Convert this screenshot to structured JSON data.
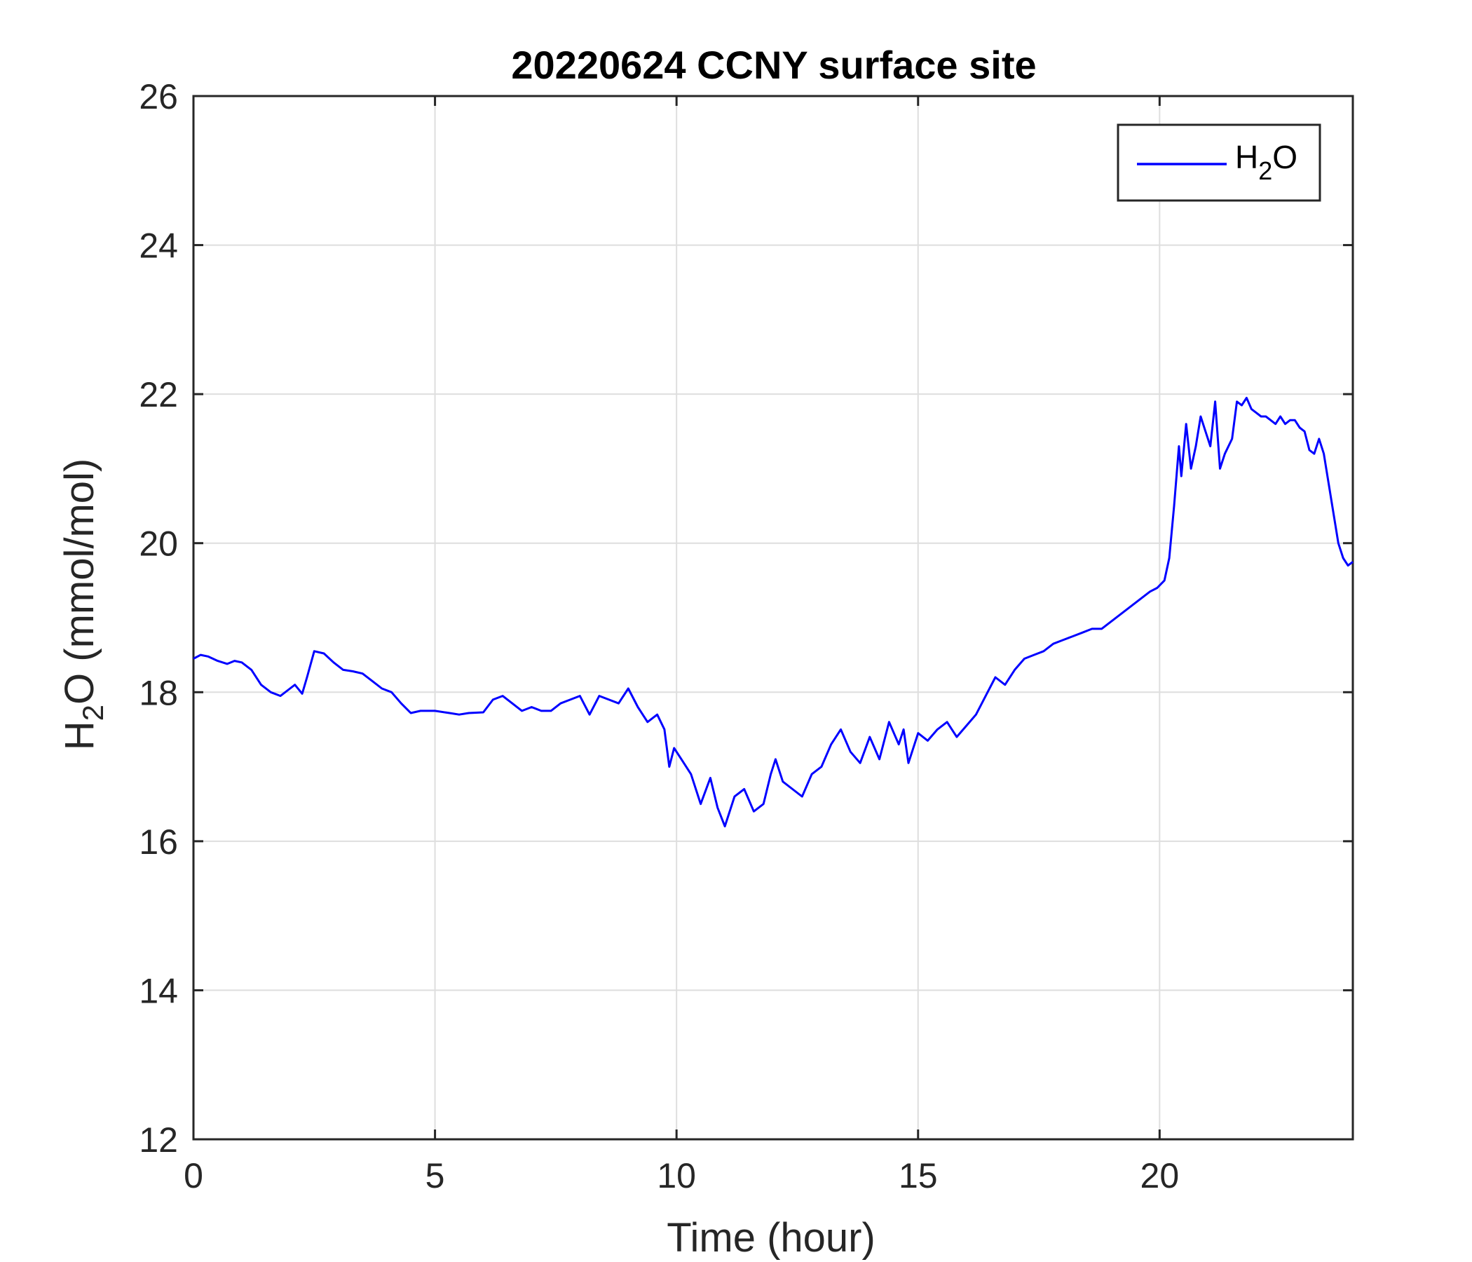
{
  "chart_data": {
    "type": "line",
    "title": "20220624 CCNY surface site",
    "xlabel": "Time (hour)",
    "ylabel": {
      "main": "H",
      "sub": "2",
      "rest": "O (mmol/mol)"
    },
    "xlim": [
      0,
      24
    ],
    "ylim": [
      12,
      26
    ],
    "xticks": [
      0,
      5,
      10,
      15,
      20
    ],
    "yticks": [
      12,
      14,
      16,
      18,
      20,
      22,
      24,
      26
    ],
    "grid": true,
    "legend_position": "top-right",
    "series": [
      {
        "name": "H2O",
        "legend_label": {
          "main": "H",
          "sub": "2",
          "rest": "O"
        },
        "color": "#0000ff",
        "x": [
          0,
          0.15,
          0.3,
          0.5,
          0.7,
          0.85,
          1.0,
          1.2,
          1.4,
          1.6,
          1.8,
          2.0,
          2.1,
          2.25,
          2.35,
          2.5,
          2.7,
          2.9,
          3.1,
          3.3,
          3.5,
          3.7,
          3.9,
          4.1,
          4.3,
          4.5,
          4.7,
          5.0,
          5.3,
          5.5,
          5.7,
          6.0,
          6.2,
          6.4,
          6.6,
          6.8,
          7.0,
          7.2,
          7.4,
          7.6,
          7.8,
          8.0,
          8.2,
          8.4,
          8.6,
          8.8,
          9.0,
          9.2,
          9.4,
          9.6,
          9.75,
          9.85,
          9.95,
          10.1,
          10.3,
          10.5,
          10.7,
          10.85,
          11.0,
          11.2,
          11.4,
          11.6,
          11.8,
          11.95,
          12.05,
          12.2,
          12.4,
          12.6,
          12.8,
          13.0,
          13.2,
          13.4,
          13.6,
          13.8,
          14.0,
          14.2,
          14.4,
          14.6,
          14.7,
          14.8,
          15.0,
          15.2,
          15.4,
          15.6,
          15.8,
          16.0,
          16.2,
          16.4,
          16.6,
          16.8,
          17.0,
          17.2,
          17.4,
          17.6,
          17.8,
          18.0,
          18.2,
          18.4,
          18.6,
          18.8,
          19.0,
          19.2,
          19.4,
          19.6,
          19.8,
          19.95,
          20.1,
          20.2,
          20.3,
          20.4,
          20.45,
          20.55,
          20.65,
          20.75,
          20.85,
          20.95,
          21.05,
          21.15,
          21.25,
          21.35,
          21.5,
          21.6,
          21.7,
          21.8,
          21.9,
          22.0,
          22.1,
          22.2,
          22.3,
          22.4,
          22.5,
          22.6,
          22.7,
          22.8,
          22.9,
          23.0,
          23.1,
          23.2,
          23.3,
          23.4,
          23.5,
          23.6,
          23.7,
          23.8,
          23.9,
          24.0
        ],
        "values": [
          18.45,
          18.5,
          18.48,
          18.42,
          18.38,
          18.42,
          18.4,
          18.3,
          18.1,
          18.0,
          17.95,
          18.05,
          18.1,
          17.98,
          18.2,
          18.55,
          18.52,
          18.4,
          18.3,
          18.28,
          18.25,
          18.15,
          18.05,
          18.0,
          17.85,
          17.72,
          17.75,
          17.75,
          17.72,
          17.7,
          17.72,
          17.73,
          17.9,
          17.95,
          17.85,
          17.75,
          17.8,
          17.75,
          17.75,
          17.85,
          17.9,
          17.95,
          17.7,
          17.95,
          17.9,
          17.85,
          18.05,
          17.8,
          17.6,
          17.7,
          17.5,
          17.0,
          17.25,
          17.1,
          16.9,
          16.5,
          16.85,
          16.45,
          16.2,
          16.6,
          16.7,
          16.4,
          16.5,
          16.9,
          17.1,
          16.8,
          16.7,
          16.6,
          16.9,
          17.0,
          17.3,
          17.5,
          17.2,
          17.05,
          17.4,
          17.1,
          17.6,
          17.3,
          17.5,
          17.05,
          17.45,
          17.35,
          17.5,
          17.6,
          17.4,
          17.55,
          17.7,
          17.95,
          18.2,
          18.1,
          18.3,
          18.45,
          18.5,
          18.55,
          18.65,
          18.7,
          18.75,
          18.8,
          18.85,
          18.85,
          18.95,
          19.05,
          19.15,
          19.25,
          19.35,
          19.4,
          19.5,
          19.8,
          20.5,
          21.3,
          20.9,
          21.6,
          21.0,
          21.3,
          21.7,
          21.5,
          21.3,
          21.9,
          21.0,
          21.2,
          21.4,
          21.9,
          21.85,
          21.95,
          21.8,
          21.75,
          21.7,
          21.7,
          21.65,
          21.6,
          21.7,
          21.6,
          21.65,
          21.65,
          21.55,
          21.5,
          21.25,
          21.2,
          21.4,
          21.2,
          20.8,
          20.4,
          20.0,
          19.8,
          19.7,
          19.75
        ]
      }
    ]
  }
}
